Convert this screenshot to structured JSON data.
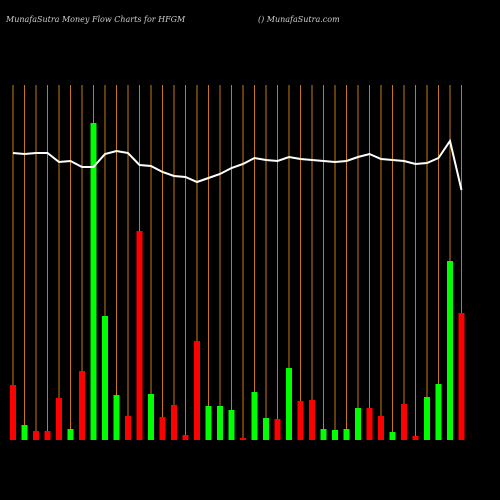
{
  "chart_data": {
    "type": "bar",
    "title": "MunafaSutra  Money Flow  Charts for HFGM",
    "subtitle": "() MunafaSutra.com",
    "categories": [
      null,
      null,
      null,
      null,
      null,
      null,
      null,
      null,
      null,
      null,
      null,
      null,
      null,
      null,
      null,
      null,
      null,
      null,
      null,
      null,
      null,
      null,
      null,
      null,
      null,
      null,
      null,
      null,
      null,
      null,
      null,
      null,
      null,
      null,
      null,
      null,
      null,
      null,
      null,
      null
    ],
    "values": [
      55,
      15,
      9,
      9,
      42,
      11,
      69,
      317,
      124,
      45,
      24,
      209,
      46,
      23,
      35,
      5,
      99,
      34,
      34,
      30,
      2,
      48,
      22,
      21,
      72,
      39,
      40,
      11,
      10,
      11,
      32,
      32,
      24,
      8,
      36,
      4,
      43,
      56,
      179,
      127
    ],
    "colors": [
      "#ff0000",
      "#00ff00",
      "#ff0000",
      "#ff0000",
      "#ff0000",
      "#00ff00",
      "#ff0000",
      "#00ff00",
      "#00ff00",
      "#00ff00",
      "#ff0000",
      "#ff0000",
      "#00ff00",
      "#ff0000",
      "#ff0000",
      "#ff0000",
      "#ff0000",
      "#00ff00",
      "#00ff00",
      "#00ff00",
      "#ff0000",
      "#00ff00",
      "#00ff00",
      "#ff0000",
      "#00ff00",
      "#ff0000",
      "#ff0000",
      "#00ff00",
      "#00ff00",
      "#00ff00",
      "#00ff00",
      "#ff0000",
      "#ff0000",
      "#00ff00",
      "#ff0000",
      "#ff0000",
      "#00ff00",
      "#00ff00",
      "#00ff00",
      "#ff0000"
    ],
    "line": {
      "color": "#ffffff",
      "values": [
        287,
        286,
        287,
        287,
        278,
        279,
        273,
        273,
        286,
        289,
        287,
        275,
        274,
        268,
        264,
        263,
        258,
        262,
        266,
        272,
        276,
        282,
        280,
        279,
        283,
        281,
        280,
        279,
        278,
        279,
        283,
        286,
        281,
        280,
        279,
        276,
        277,
        282,
        299,
        250
      ]
    },
    "ylim": [
      0,
      355
    ],
    "grid_color": "#c87814"
  }
}
